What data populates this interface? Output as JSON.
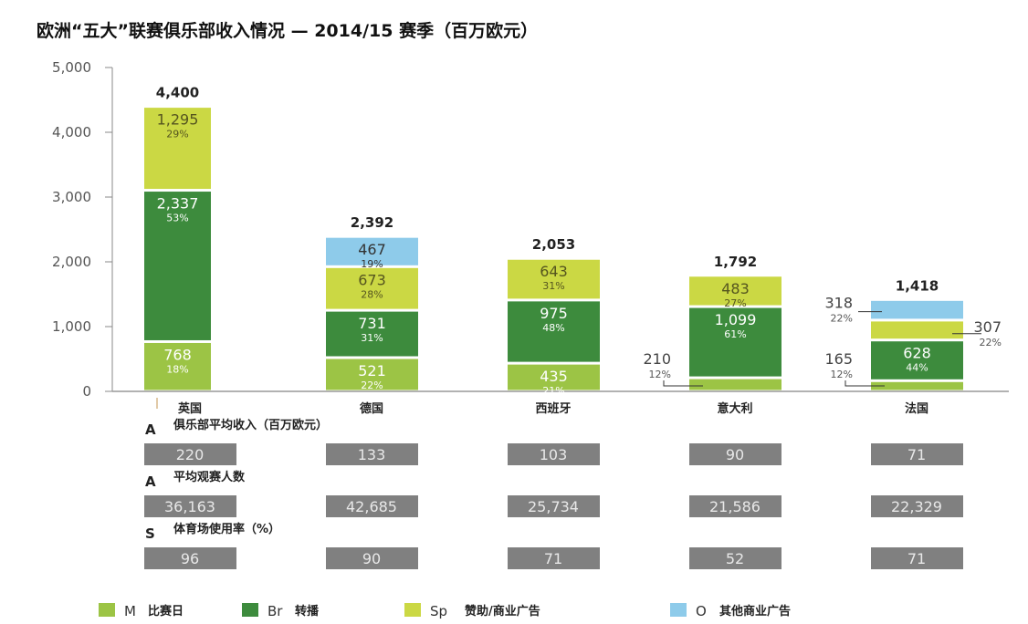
{
  "title": "欧洲“五大”联赛俱乐部收入情况 — 2014/15 赛季（百万欧元）",
  "chart_data": {
    "type": "bar",
    "stacked": true,
    "title": "欧洲“五大”联赛俱乐部收入情况 — 2014/15 赛季（百万欧元）",
    "ylim": [
      0,
      5000
    ],
    "yticks": [
      "0",
      "1,000",
      "2,000",
      "3,000",
      "4,000",
      "5,000"
    ],
    "ytick_values": [
      0,
      1000,
      2000,
      3000,
      4000,
      5000
    ],
    "grid": false,
    "legend_position": "bottom",
    "categories": [
      "英国",
      "德国",
      "西班牙",
      "意大利",
      "法国"
    ],
    "totals": [
      "4,400",
      "2,392",
      "2,053",
      "1,792",
      "1,418"
    ],
    "series": [
      {
        "name": "比赛日",
        "abbr": "M",
        "color": "#9cc445",
        "values": [
          768,
          521,
          435,
          210,
          165
        ],
        "labels": [
          "768",
          "521",
          "435",
          "210",
          "165"
        ],
        "pcts": [
          "18%",
          "22%",
          "21%",
          "12%",
          "12%"
        ]
      },
      {
        "name": "转播",
        "abbr": "Br",
        "color": "#3d8b3d",
        "values": [
          2337,
          731,
          975,
          1099,
          628
        ],
        "labels": [
          "2,337",
          "731",
          "975",
          "1,099",
          "628"
        ],
        "pcts": [
          "53%",
          "31%",
          "48%",
          "61%",
          "44%"
        ]
      },
      {
        "name": "赞助/商业广告",
        "abbr": "Sp",
        "color": "#cbd844",
        "values": [
          1295,
          673,
          643,
          483,
          307
        ],
        "labels": [
          "1,295",
          "673",
          "643",
          "483",
          "307"
        ],
        "pcts": [
          "29%",
          "28%",
          "31%",
          "27%",
          "22%"
        ]
      },
      {
        "name": "其他商业广告",
        "abbr": "O",
        "color": "#8ecbea",
        "values": [
          null,
          467,
          null,
          null,
          318
        ],
        "labels": [
          null,
          "467",
          null,
          null,
          "318"
        ],
        "pcts": [
          null,
          "19%",
          null,
          null,
          "22%"
        ]
      }
    ]
  },
  "table": {
    "rows": [
      {
        "letter": "A",
        "label": "俱乐部平均收入（百万欧元）",
        "values": [
          "220",
          "133",
          "103",
          "90",
          "71"
        ]
      },
      {
        "letter": "A",
        "label": "平均观赛人数",
        "values": [
          "36,163",
          "42,685",
          "25,734",
          "21,586",
          "22,329"
        ]
      },
      {
        "letter": "S",
        "label": "体育场使用率（%）",
        "values": [
          "96",
          "90",
          "71",
          "52",
          "71"
        ]
      }
    ],
    "cell_color": "#808080"
  }
}
